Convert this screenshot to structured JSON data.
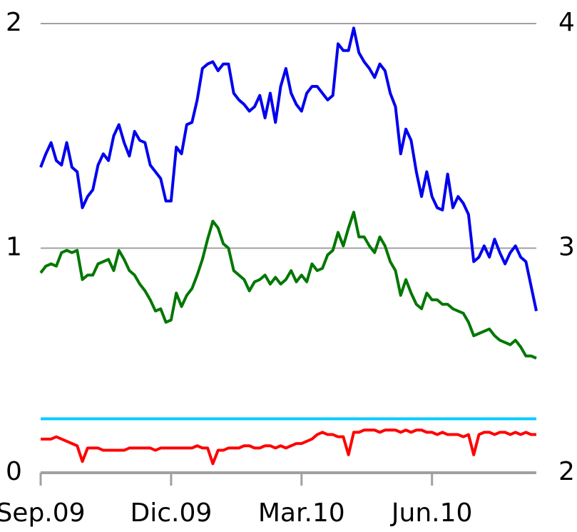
{
  "chart_data": {
    "type": "line",
    "categories": [
      "Sep.09",
      null,
      null,
      null,
      null,
      null,
      null,
      null,
      null,
      null,
      null,
      null,
      null,
      null,
      null,
      null,
      null,
      null,
      null,
      null,
      null,
      null,
      null,
      null,
      null,
      "Dic.09",
      null,
      null,
      null,
      null,
      null,
      null,
      null,
      null,
      null,
      null,
      null,
      null,
      null,
      null,
      null,
      null,
      null,
      null,
      null,
      null,
      null,
      null,
      null,
      null,
      "Mar.10",
      null,
      null,
      null,
      null,
      null,
      null,
      null,
      null,
      null,
      null,
      null,
      null,
      null,
      null,
      null,
      null,
      null,
      null,
      null,
      null,
      null,
      null,
      null,
      null,
      "Jun.10",
      null,
      null,
      null,
      null,
      null,
      null,
      null,
      null,
      null,
      null,
      null,
      null,
      null,
      null,
      null,
      null,
      null,
      null,
      null,
      null
    ],
    "series": [
      {
        "color": "#0000ee",
        "values": [
          1.36,
          1.42,
          1.47,
          1.39,
          1.37,
          1.47,
          1.36,
          1.34,
          1.18,
          1.23,
          1.26,
          1.37,
          1.42,
          1.39,
          1.5,
          1.55,
          1.47,
          1.41,
          1.52,
          1.48,
          1.47,
          1.37,
          1.34,
          1.31,
          1.21,
          1.21,
          1.45,
          1.42,
          1.55,
          1.56,
          1.66,
          1.8,
          1.82,
          1.83,
          1.79,
          1.82,
          1.82,
          1.69,
          1.66,
          1.64,
          1.61,
          1.63,
          1.68,
          1.58,
          1.69,
          1.56,
          1.72,
          1.8,
          1.69,
          1.64,
          1.61,
          1.69,
          1.72,
          1.72,
          1.69,
          1.66,
          1.68,
          1.91,
          1.88,
          1.88,
          1.98,
          1.87,
          1.83,
          1.8,
          1.76,
          1.82,
          1.79,
          1.69,
          1.63,
          1.42,
          1.53,
          1.48,
          1.34,
          1.23,
          1.34,
          1.23,
          1.18,
          1.17,
          1.33,
          1.18,
          1.23,
          1.2,
          1.15,
          0.94,
          0.96,
          1.01,
          0.96,
          1.04,
          0.98,
          0.93,
          0.98,
          1.01,
          0.96,
          0.94,
          0.83,
          0.72
        ]
      },
      {
        "color": "#007700",
        "values": [
          0.89,
          0.92,
          0.93,
          0.92,
          0.98,
          0.99,
          0.98,
          0.99,
          0.86,
          0.88,
          0.88,
          0.93,
          0.94,
          0.95,
          0.9,
          0.99,
          0.95,
          0.9,
          0.88,
          0.84,
          0.81,
          0.77,
          0.72,
          0.73,
          0.67,
          0.68,
          0.8,
          0.74,
          0.79,
          0.82,
          0.88,
          0.95,
          1.04,
          1.12,
          1.09,
          1.02,
          1.0,
          0.9,
          0.88,
          0.86,
          0.81,
          0.85,
          0.86,
          0.88,
          0.84,
          0.87,
          0.84,
          0.86,
          0.9,
          0.85,
          0.88,
          0.85,
          0.93,
          0.9,
          0.91,
          0.97,
          0.99,
          1.07,
          1.01,
          1.09,
          1.16,
          1.05,
          1.05,
          1.01,
          0.98,
          1.05,
          1.01,
          0.94,
          0.9,
          0.79,
          0.86,
          0.8,
          0.75,
          0.73,
          0.8,
          0.77,
          0.77,
          0.75,
          0.75,
          0.73,
          0.72,
          0.71,
          0.67,
          0.61,
          0.62,
          0.63,
          0.64,
          0.61,
          0.59,
          0.58,
          0.57,
          0.59,
          0.56,
          0.52,
          0.52,
          0.51
        ]
      },
      {
        "color": "#00ccff",
        "values": [
          0.24,
          0.24,
          0.24,
          0.24,
          0.24,
          0.24,
          0.24,
          0.24,
          0.24,
          0.24,
          0.24,
          0.24,
          0.24,
          0.24,
          0.24,
          0.24,
          0.24,
          0.24,
          0.24,
          0.24,
          0.24,
          0.24,
          0.24,
          0.24,
          0.24,
          0.24,
          0.24,
          0.24,
          0.24,
          0.24,
          0.24,
          0.24,
          0.24,
          0.24,
          0.24,
          0.24,
          0.24,
          0.24,
          0.24,
          0.24,
          0.24,
          0.24,
          0.24,
          0.24,
          0.24,
          0.24,
          0.24,
          0.24,
          0.24,
          0.24,
          0.24,
          0.24,
          0.24,
          0.24,
          0.24,
          0.24,
          0.24,
          0.24,
          0.24,
          0.24,
          0.24,
          0.24,
          0.24,
          0.24,
          0.24,
          0.24,
          0.24,
          0.24,
          0.24,
          0.24,
          0.24,
          0.24,
          0.24,
          0.24,
          0.24,
          0.24,
          0.24,
          0.24,
          0.24,
          0.24,
          0.24,
          0.24,
          0.24,
          0.24,
          0.24,
          0.24,
          0.24,
          0.24,
          0.24,
          0.24,
          0.24,
          0.24,
          0.24,
          0.24,
          0.24,
          0.24
        ]
      },
      {
        "color": "#ff0000",
        "values": [
          0.15,
          0.15,
          0.15,
          0.16,
          0.15,
          0.14,
          0.13,
          0.12,
          0.05,
          0.11,
          0.11,
          0.11,
          0.1,
          0.1,
          0.1,
          0.1,
          0.1,
          0.11,
          0.11,
          0.11,
          0.11,
          0.11,
          0.1,
          0.11,
          0.11,
          0.11,
          0.11,
          0.11,
          0.11,
          0.11,
          0.12,
          0.11,
          0.11,
          0.04,
          0.1,
          0.1,
          0.11,
          0.11,
          0.11,
          0.12,
          0.12,
          0.11,
          0.11,
          0.12,
          0.12,
          0.11,
          0.12,
          0.11,
          0.12,
          0.13,
          0.13,
          0.14,
          0.15,
          0.17,
          0.18,
          0.17,
          0.17,
          0.16,
          0.16,
          0.08,
          0.18,
          0.18,
          0.19,
          0.19,
          0.19,
          0.18,
          0.19,
          0.19,
          0.19,
          0.18,
          0.19,
          0.18,
          0.19,
          0.19,
          0.18,
          0.18,
          0.17,
          0.18,
          0.17,
          0.17,
          0.17,
          0.16,
          0.17,
          0.08,
          0.17,
          0.18,
          0.18,
          0.17,
          0.18,
          0.18,
          0.17,
          0.18,
          0.17,
          0.18,
          0.17,
          0.17
        ]
      }
    ],
    "ylim": [
      0,
      2
    ],
    "yticks": [
      0,
      1,
      2
    ],
    "y2lim": [
      2,
      4
    ],
    "y2ticks": [
      2,
      3,
      4
    ],
    "grid": true
  }
}
